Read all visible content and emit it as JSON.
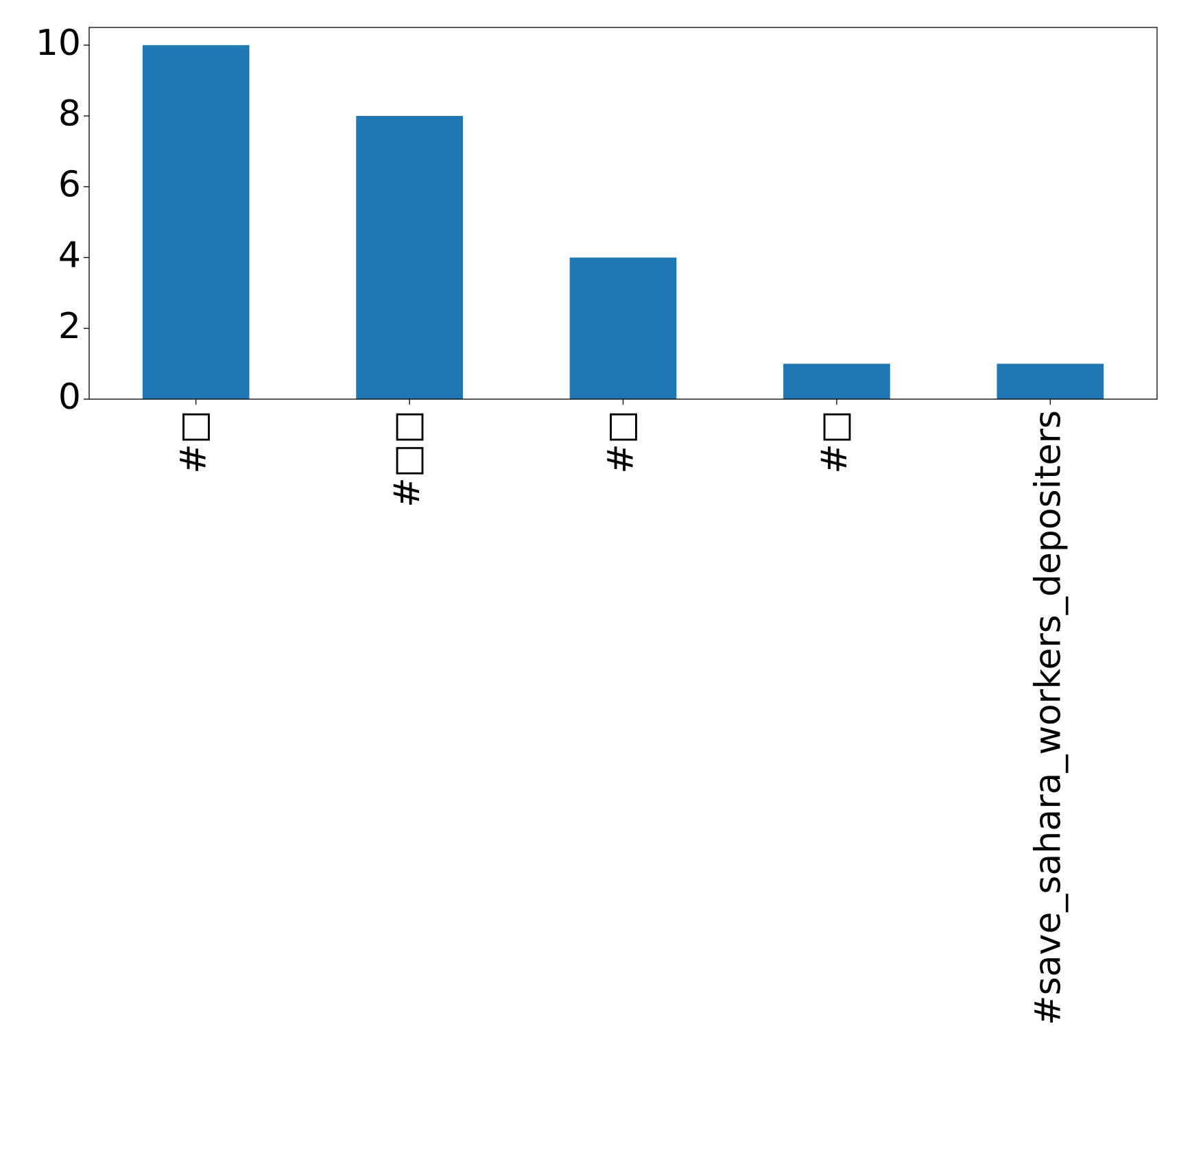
{
  "chart_data": {
    "type": "bar",
    "categories": [
      "#□",
      "#□□",
      "#□",
      "#□",
      "#save_sahara_workers_depositers"
    ],
    "values": [
      10,
      8,
      4,
      1,
      1
    ],
    "color": "#1f77b4",
    "ylim": [
      0,
      10.5
    ],
    "yticks": [
      0,
      2,
      4,
      6,
      8,
      10
    ],
    "grid": false
  }
}
